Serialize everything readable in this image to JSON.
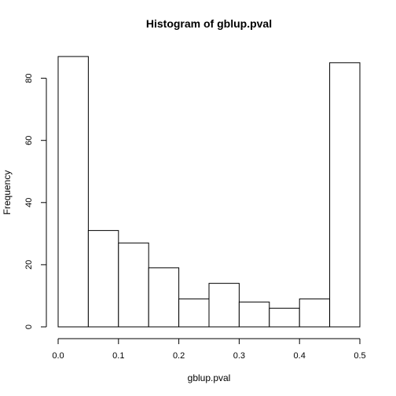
{
  "chart_data": {
    "type": "bar",
    "title": "Histogram of gblup.pval",
    "xlabel": "gblup.pval",
    "ylabel": "Frequency",
    "bins": [
      {
        "start": 0.0,
        "end": 0.05,
        "value": 87
      },
      {
        "start": 0.05,
        "end": 0.1,
        "value": 31
      },
      {
        "start": 0.1,
        "end": 0.15,
        "value": 27
      },
      {
        "start": 0.15,
        "end": 0.2,
        "value": 19
      },
      {
        "start": 0.2,
        "end": 0.25,
        "value": 9
      },
      {
        "start": 0.25,
        "end": 0.3,
        "value": 14
      },
      {
        "start": 0.3,
        "end": 0.35,
        "value": 8
      },
      {
        "start": 0.35,
        "end": 0.4,
        "value": 6
      },
      {
        "start": 0.4,
        "end": 0.45,
        "value": 9
      },
      {
        "start": 0.45,
        "end": 0.5,
        "value": 85
      }
    ],
    "x_ticks": [
      "0.0",
      "0.1",
      "0.2",
      "0.3",
      "0.4",
      "0.5"
    ],
    "y_ticks": [
      "0",
      "20",
      "40",
      "60",
      "80"
    ],
    "xlim": [
      0,
      0.5
    ],
    "ylim": [
      0,
      87
    ],
    "grid": false,
    "bar_color": "#ffffff",
    "border_color": "#000000"
  }
}
